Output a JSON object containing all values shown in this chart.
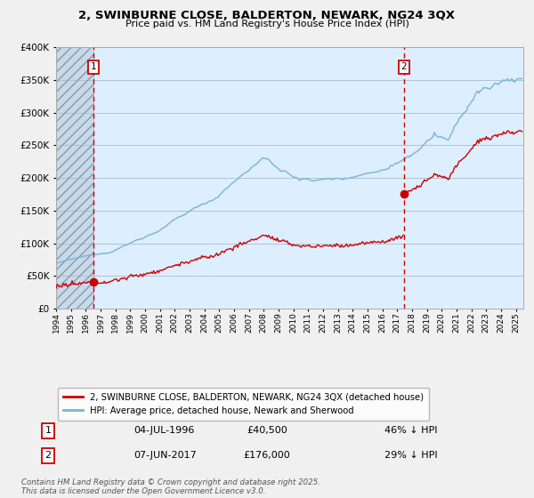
{
  "title": "2, SWINBURNE CLOSE, BALDERTON, NEWARK, NG24 3QX",
  "subtitle": "Price paid vs. HM Land Registry's House Price Index (HPI)",
  "hpi_label": "HPI: Average price, detached house, Newark and Sherwood",
  "price_label": "2, SWINBURNE CLOSE, BALDERTON, NEWARK, NG24 3QX (detached house)",
  "footnote": "Contains HM Land Registry data © Crown copyright and database right 2025.\nThis data is licensed under the Open Government Licence v3.0.",
  "sale1": {
    "label": "1",
    "date": "04-JUL-1996",
    "price": 40500,
    "note": "46% ↓ HPI",
    "year": 1996.5
  },
  "sale2": {
    "label": "2",
    "date": "07-JUN-2017",
    "price": 176000,
    "note": "29% ↓ HPI",
    "year": 2017.44
  },
  "hpi_color": "#7ab3d4",
  "price_color": "#cc0000",
  "vline_color": "#cc0000",
  "bg_color": "#f0f0f0",
  "plot_bg": "#ddeeff",
  "ylim": [
    0,
    400000
  ],
  "xlim_start": 1994.0,
  "xlim_end": 2025.5
}
